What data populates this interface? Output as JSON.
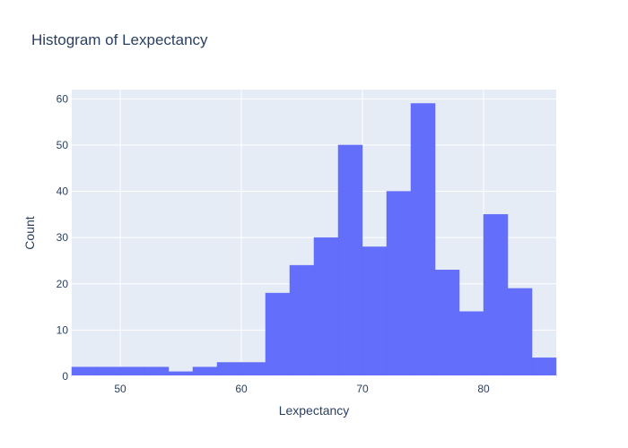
{
  "chart_data": {
    "type": "bar",
    "title": "Histogram of Lexpectancy",
    "xlabel": "Lexpectancy",
    "ylabel": "Count",
    "bin_width": 2,
    "xlim": [
      46,
      86
    ],
    "ylim": [
      0,
      62
    ],
    "x_ticks": [
      50,
      60,
      70,
      80
    ],
    "y_ticks": [
      0,
      10,
      20,
      30,
      40,
      50,
      60
    ],
    "grid": true,
    "bar_color": "#636efa",
    "plot_bg": "#e5ecf6",
    "bins": [
      {
        "start": 46,
        "end": 48,
        "count": 2
      },
      {
        "start": 48,
        "end": 50,
        "count": 2
      },
      {
        "start": 50,
        "end": 52,
        "count": 2
      },
      {
        "start": 52,
        "end": 54,
        "count": 2
      },
      {
        "start": 54,
        "end": 56,
        "count": 1
      },
      {
        "start": 56,
        "end": 58,
        "count": 2
      },
      {
        "start": 58,
        "end": 60,
        "count": 3
      },
      {
        "start": 60,
        "end": 62,
        "count": 3
      },
      {
        "start": 62,
        "end": 64,
        "count": 18
      },
      {
        "start": 64,
        "end": 66,
        "count": 24
      },
      {
        "start": 66,
        "end": 68,
        "count": 30
      },
      {
        "start": 68,
        "end": 70,
        "count": 50
      },
      {
        "start": 70,
        "end": 72,
        "count": 28
      },
      {
        "start": 72,
        "end": 74,
        "count": 40
      },
      {
        "start": 74,
        "end": 76,
        "count": 59
      },
      {
        "start": 76,
        "end": 78,
        "count": 23
      },
      {
        "start": 78,
        "end": 80,
        "count": 14
      },
      {
        "start": 80,
        "end": 82,
        "count": 35
      },
      {
        "start": 82,
        "end": 84,
        "count": 19
      },
      {
        "start": 84,
        "end": 86,
        "count": 4
      }
    ]
  }
}
